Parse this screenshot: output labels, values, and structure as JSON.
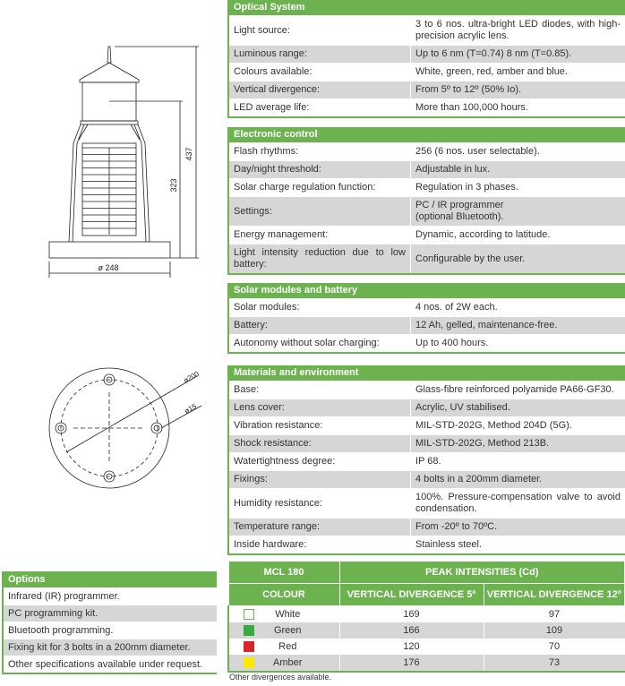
{
  "drawings": {
    "side_view": {
      "height_total": "437",
      "height_focal": "323",
      "base_diameter": "ø 248"
    },
    "top_view": {
      "bolt_circle": "ø200",
      "bolt_hole": "ø15"
    }
  },
  "sections": [
    {
      "title": "Optical System",
      "rows": [
        {
          "label": "Light source:",
          "value": "3 to 6 nos. ultra-bright LED diodes, with high-precision acrylic lens."
        },
        {
          "label": "Luminous range:",
          "value": "Up to 6 nm (T=0.74) 8 nm (T=0.85)."
        },
        {
          "label": "Colours available:",
          "value": "White, green, red, amber and blue."
        },
        {
          "label": "Vertical divergence:",
          "value": "From 5º to 12º (50% Io)."
        },
        {
          "label": "LED average life:",
          "value": "More than 100,000 hours."
        }
      ]
    },
    {
      "title": "Electronic control",
      "rows": [
        {
          "label": "Flash rhythms:",
          "value": "256 (6 nos. user selectable)."
        },
        {
          "label": "Day/night threshold:",
          "value": "Adjustable in lux."
        },
        {
          "label": "Solar charge regulation function:",
          "value": "Regulation in 3 phases."
        },
        {
          "label": "Settings:",
          "value": "PC / IR programmer\n(optional Bluetooth)."
        },
        {
          "label": "Energy management:",
          "value": "Dynamic, according to latitude."
        },
        {
          "label": "Light intensity reduction due to low battery:",
          "value": "Configurable by the user."
        }
      ]
    },
    {
      "title": "Solar modules and battery",
      "rows": [
        {
          "label": "Solar modules:",
          "value": "4 nos. of 2W each."
        },
        {
          "label": "Battery:",
          "value": "12 Ah, gelled, maintenance-free."
        },
        {
          "label": "Autonomy without solar charging:",
          "value": "Up to 400 hours."
        }
      ]
    },
    {
      "title": "Materials and environment",
      "rows": [
        {
          "label": "Base:",
          "value": "Glass-fibre reinforced polyamide PA66-GF30."
        },
        {
          "label": "Lens cover:",
          "value": "Acrylic, UV stabilised."
        },
        {
          "label": "Vibration resistance:",
          "value": "MIL-STD-202G, Method 204D (5G)."
        },
        {
          "label": "Shock resistance:",
          "value": "MIL-STD-202G, Method 213B."
        },
        {
          "label": "Watertightness degree:",
          "value": "IP 68."
        },
        {
          "label": "Fixings:",
          "value": "4 bolts in a 200mm diameter."
        },
        {
          "label": "Humidity resistance:",
          "value": "100%. Pressure-compensation valve to avoid condensation."
        },
        {
          "label": "Temperature range:",
          "value": "From -20º to 70ºC."
        },
        {
          "label": "Inside hardware:",
          "value": "Stainless steel."
        }
      ]
    }
  ],
  "options": {
    "title": "Options",
    "items": [
      "Infrared (IR) programmer.",
      "PC programming kit.",
      "Bluetooth programming.",
      "Fixing kit for 3 bolts in a 200mm diameter.",
      "Other specifications available under request."
    ]
  },
  "intensities": {
    "model": "MCL 180",
    "group_header": "PEAK INTENSITIES (Cd)",
    "colour_header": "COLOUR",
    "columns": [
      "VERTICAL DIVERGENCE 5º",
      "VERTICAL DIVERGENCE 12º"
    ],
    "rows": [
      {
        "colour": "White",
        "swatch": "#ffffff",
        "v5": "169",
        "v12": "97"
      },
      {
        "colour": "Green",
        "swatch": "#3aa845",
        "v5": "166",
        "v12": "109"
      },
      {
        "colour": "Red",
        "swatch": "#d7262a",
        "v5": "120",
        "v12": "70"
      },
      {
        "colour": "Amber",
        "swatch": "#fde800",
        "v5": "176",
        "v12": "73"
      }
    ],
    "note": "Other divergences available."
  },
  "colors": {
    "accent": "#6cb350",
    "row_alt": "#d6d6d6"
  }
}
